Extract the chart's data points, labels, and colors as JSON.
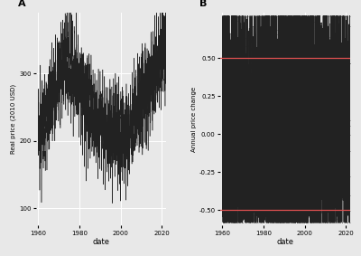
{
  "title_A": "A",
  "title_B": "B",
  "xlabel": "date",
  "ylabel_A": "Real price (2010 USD)",
  "ylabel_B": "Annual price change",
  "xlim": [
    1959,
    2022
  ],
  "xticks": [
    1960,
    1980,
    2000,
    2020
  ],
  "ylim_A": [
    75,
    390
  ],
  "yticks_A": [
    100,
    200,
    300
  ],
  "ylim_B": [
    -0.6,
    0.8
  ],
  "yticks_B": [
    -0.5,
    -0.25,
    0.0,
    0.25,
    0.5
  ],
  "hline_B": [
    0.5,
    -0.5
  ],
  "hline_color": "#e05050",
  "bg_color": "#e8e8e8",
  "grid_color": "#ffffff",
  "line_color": "#222222",
  "fig_bg": "#e8e8e8",
  "seed": 99
}
